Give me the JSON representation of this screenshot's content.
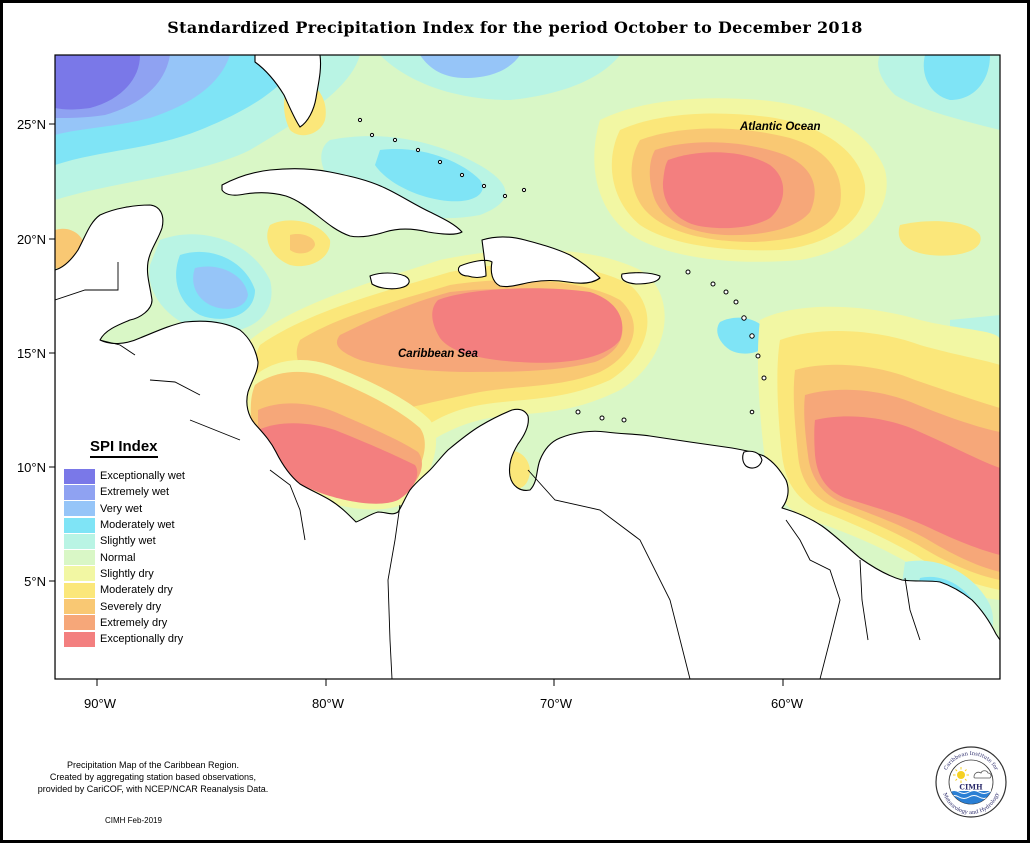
{
  "title": "Standardized Precipitation Index for the period October to December 2018",
  "map": {
    "latitude_labels": [
      "25°N",
      "20°N",
      "15°N",
      "10°N",
      "5°N"
    ],
    "longitude_labels": [
      "90°W",
      "80°W",
      "70°W",
      "60°W"
    ],
    "ocean_labels": {
      "atlantic": "Atlantic Ocean",
      "caribbean": "Caribbean Sea"
    }
  },
  "legend": {
    "title": "SPI Index",
    "items": [
      {
        "label": "Exceptionally wet",
        "color": "#7a78e8"
      },
      {
        "label": "Extremely wet",
        "color": "#8fa2f2"
      },
      {
        "label": "Very wet",
        "color": "#96c5f8"
      },
      {
        "label": "Moderately wet",
        "color": "#7fe4f6"
      },
      {
        "label": "Slightly wet",
        "color": "#b9f4e4"
      },
      {
        "label": "Normal",
        "color": "#d9f7c6"
      },
      {
        "label": "Slightly dry",
        "color": "#f2f7a3"
      },
      {
        "label": "Moderately dry",
        "color": "#fbe77a"
      },
      {
        "label": "Severely dry",
        "color": "#f9c873"
      },
      {
        "label": "Extremely dry",
        "color": "#f6a779"
      },
      {
        "label": "Exceptionally dry",
        "color": "#f37f7f"
      }
    ]
  },
  "footer": {
    "description_lines": [
      "Precipitation Map of the Caribbean Region.",
      "Created by aggregating station based observations,",
      "provided by CariCOF, with NCEP/NCAR Reanalysis Data."
    ],
    "credit": "CIMH Feb-2019"
  },
  "logo": {
    "text_top": "Caribbean Institute for",
    "text_bottom": "Meteorology and Hydrology",
    "abbrev": "CIMH"
  }
}
